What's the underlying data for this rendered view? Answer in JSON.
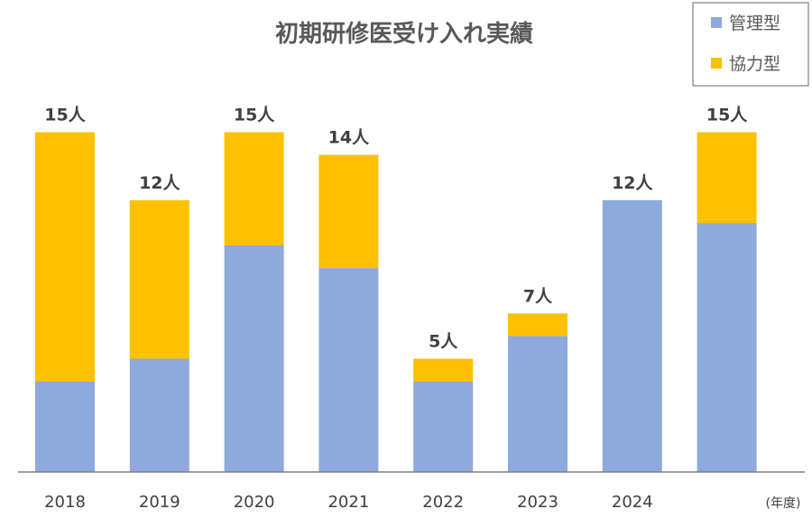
{
  "chart_data": {
    "type": "bar",
    "stacked": true,
    "title": "初期研修医受け入れ実績",
    "categories": [
      "2018",
      "2019",
      "2020",
      "2021",
      "2022",
      "2023",
      "2024",
      ""
    ],
    "series": [
      {
        "name": "管理型",
        "color": "#8EA9DB",
        "values": [
          4,
          5,
          10,
          9,
          4,
          6,
          12,
          11
        ]
      },
      {
        "name": "協力型",
        "color": "#FFC000",
        "values": [
          11,
          7,
          5,
          5,
          1,
          1,
          0,
          4
        ]
      }
    ],
    "totals": [
      15,
      12,
      15,
      14,
      5,
      7,
      12,
      15
    ],
    "total_suffix": "人",
    "x_unit": "(年度)",
    "ylim": [
      0,
      16
    ],
    "grid": false,
    "legend_position": "top-right"
  }
}
